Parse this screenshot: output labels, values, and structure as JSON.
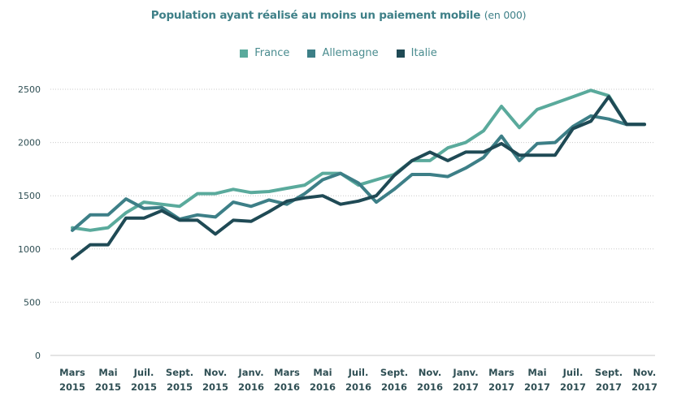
{
  "chart_data": {
    "type": "line",
    "title": "Population ayant réalisé au moins un paiement mobile",
    "title_unit": "(en 000)",
    "legend_position": "top-center",
    "grid": true,
    "ylim": [
      0,
      2500
    ],
    "yticks": [
      0,
      500,
      1000,
      1500,
      2000,
      2500
    ],
    "x_tick_labels": [
      [
        "Mars",
        "2015"
      ],
      [
        "Mai",
        "2015"
      ],
      [
        "Juil.",
        "2015"
      ],
      [
        "Sept.",
        "2015"
      ],
      [
        "Nov.",
        "2015"
      ],
      [
        "Janv.",
        "2016"
      ],
      [
        "Mars",
        "2016"
      ],
      [
        "Mai",
        "2016"
      ],
      [
        "Juil.",
        "2016"
      ],
      [
        "Sept.",
        "2016"
      ],
      [
        "Nov.",
        "2016"
      ],
      [
        "Janv.",
        "2017"
      ],
      [
        "Mars",
        "2017"
      ],
      [
        "Mai",
        "2017"
      ],
      [
        "Juil.",
        "2017"
      ],
      [
        "Sept.",
        "2017"
      ],
      [
        "Nov.",
        "2017"
      ]
    ],
    "x_tick_months": [
      "2015-03",
      "2015-05",
      "2015-07",
      "2015-09",
      "2015-11",
      "2016-01",
      "2016-03",
      "2016-05",
      "2016-07",
      "2016-09",
      "2016-11",
      "2017-01",
      "2017-03",
      "2017-05",
      "2017-07",
      "2017-09",
      "2017-11"
    ],
    "x": [
      "2015-03",
      "2015-04",
      "2015-05",
      "2015-06",
      "2015-07",
      "2015-08",
      "2015-09",
      "2015-10",
      "2015-11",
      "2015-12",
      "2016-01",
      "2016-02",
      "2016-03",
      "2016-04",
      "2016-05",
      "2016-06",
      "2016-07",
      "2016-08",
      "2016-09",
      "2016-10",
      "2016-11",
      "2016-12",
      "2017-01",
      "2017-02",
      "2017-03",
      "2017-04",
      "2017-05",
      "2017-06",
      "2017-07",
      "2017-08",
      "2017-09",
      "2017-10",
      "2017-11"
    ],
    "series": [
      {
        "name": "France",
        "color": "#5aaa9c",
        "values": [
          1200,
          1175,
          1200,
          1340,
          1440,
          1420,
          1400,
          1520,
          1520,
          1560,
          1530,
          1540,
          1570,
          1600,
          1710,
          1710,
          1600,
          1650,
          1700,
          1830,
          1830,
          1950,
          2000,
          2110,
          2340,
          2140,
          2310,
          2370,
          2430,
          2490,
          2440,
          2170,
          2170
        ]
      },
      {
        "name": "Allemagne",
        "color": "#3d7f87",
        "values": [
          1175,
          1320,
          1320,
          1470,
          1380,
          1390,
          1280,
          1320,
          1300,
          1440,
          1400,
          1460,
          1420,
          1520,
          1650,
          1710,
          1620,
          1440,
          1560,
          1700,
          1700,
          1680,
          1760,
          1860,
          2060,
          1830,
          1990,
          2000,
          2150,
          2250,
          2220,
          2170,
          2170
        ]
      },
      {
        "name": "Italie",
        "color": "#1f4a55",
        "values": [
          910,
          1040,
          1040,
          1290,
          1290,
          1360,
          1270,
          1270,
          1140,
          1270,
          1260,
          1350,
          1450,
          1480,
          1500,
          1420,
          1450,
          1500,
          1690,
          1830,
          1910,
          1830,
          1910,
          1910,
          1990,
          1880,
          1880,
          1880,
          2130,
          2200,
          2430,
          2170,
          2170
        ]
      }
    ]
  }
}
